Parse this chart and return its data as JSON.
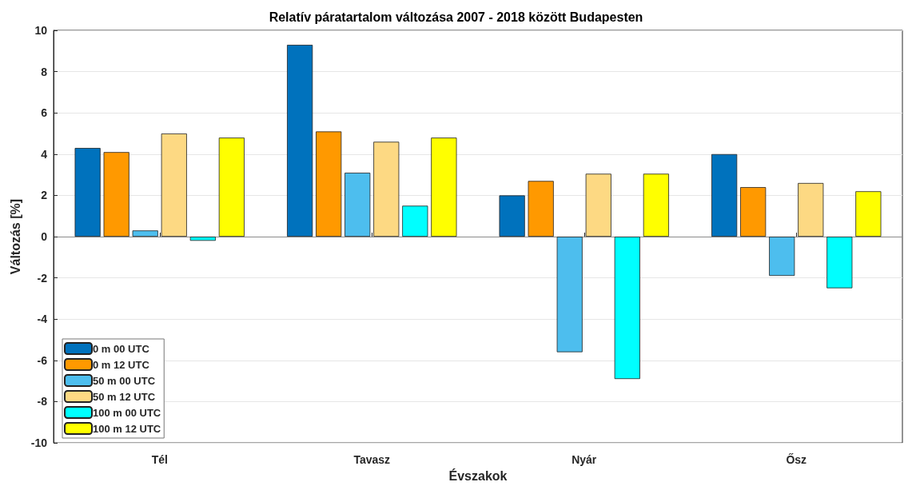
{
  "chart_data": {
    "type": "bar",
    "title": "Relatív páratartalom változása 2007 - 2018 között Budapesten",
    "xlabel": "Évszakok",
    "ylabel": "Változás [%]",
    "categories": [
      "Tél",
      "Tavasz",
      "Nyár",
      "Ősz"
    ],
    "series": [
      {
        "name": "0 m 00 UTC",
        "color": "#0072bd",
        "values": [
          4.3,
          9.3,
          2.0,
          4.0
        ]
      },
      {
        "name": "0 m 12 UTC",
        "color": "#ff9900",
        "values": [
          4.1,
          5.1,
          2.7,
          2.4
        ]
      },
      {
        "name": "50 m 00 UTC",
        "color": "#4dbeee",
        "values": [
          0.3,
          3.1,
          -5.6,
          -1.9
        ]
      },
      {
        "name": "50 m 12 UTC",
        "color": "#fdd983",
        "values": [
          5.0,
          4.6,
          3.05,
          2.6
        ]
      },
      {
        "name": "100 m 00 UTC",
        "color": "#00ffff",
        "values": [
          -0.2,
          1.5,
          -6.9,
          -2.5
        ]
      },
      {
        "name": "100 m 12 UTC",
        "color": "#ffff00",
        "values": [
          4.8,
          4.8,
          3.05,
          2.2
        ]
      }
    ],
    "ylim": [
      -10,
      10
    ],
    "yticks": [
      -10,
      -8,
      -6,
      -4,
      -2,
      0,
      2,
      4,
      6,
      8,
      10
    ],
    "grid": "y",
    "legend": "bottom left"
  }
}
